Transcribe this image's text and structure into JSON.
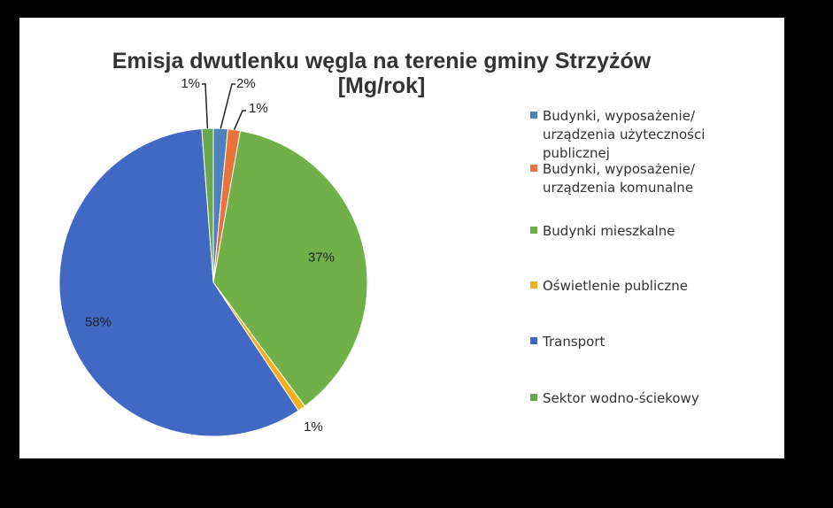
{
  "chart_data": {
    "type": "pie",
    "title": [
      "Emisja dwutlenku węgla na terenie gminy Strzyżów",
      "[Mg/rok]"
    ],
    "legend_position": "right",
    "slices": [
      {
        "name": [
          "Budynki, wyposażenie/",
          "urządzenia użyteczności",
          "publicznej"
        ],
        "value": 1.5,
        "label": "2%",
        "color": "#4f81bd"
      },
      {
        "name": [
          "Budynki, wyposażenie/",
          "urządzenia komunalne"
        ],
        "value": 1.3,
        "label": "1%",
        "color": "#e8743b"
      },
      {
        "name": [
          "Budynki mieszkalne"
        ],
        "value": 37.0,
        "label": "37%",
        "color": "#71b048"
      },
      {
        "name": [
          "Oświetlenie publiczne"
        ],
        "value": 0.8,
        "label": "1%",
        "color": "#f2b01e"
      },
      {
        "name": [
          "Transport"
        ],
        "value": 58.0,
        "label": "58%",
        "color": "#4169c4"
      },
      {
        "name": [
          "Sektor wodno-ściekowy"
        ],
        "value": 1.2,
        "label": "1%",
        "color": "#6aa84f"
      }
    ]
  }
}
